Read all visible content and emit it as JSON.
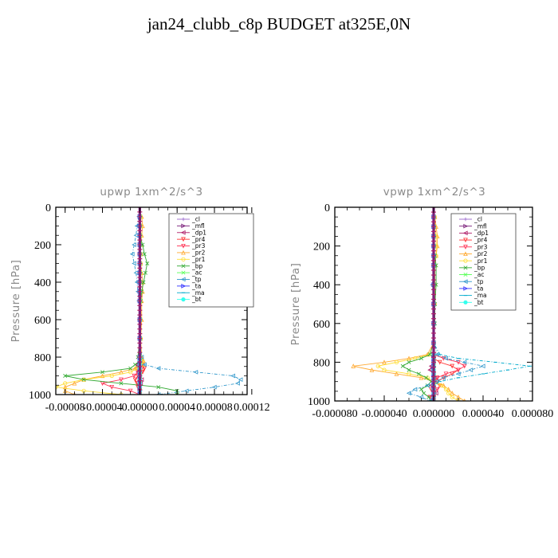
{
  "title": "jan24_clubb_c8p  BUDGET at325E,0N",
  "colors": {
    "_cl": "#9966cc",
    "_mfl": "#7a1f7a",
    "_dp1": "#b0206a",
    "_pr4": "#ff3333",
    "_pr3": "#ff3355",
    "_pr2": "#ffaa33",
    "_pr1": "#ffdd33",
    "_bp": "#33aa33",
    "_ac": "#55ff55",
    "_tp": "#3399cc",
    "_ta": "#3333ff",
    "_ma": "#00aacc",
    "_bt": "#33ffee"
  },
  "legend": [
    "_cl",
    "_mfl",
    "_dp1",
    "_pr4",
    "_pr3",
    "_pr2",
    "_pr1",
    "_bp",
    "_ac",
    "_tp",
    "_ta",
    "_ma",
    "_bt"
  ],
  "chart_data": [
    {
      "type": "line",
      "title": "upwp   1xm^2/s^3",
      "xlabel": "",
      "ylabel": "Pressure [hPa]",
      "xlim": [
        -9e-05,
        0.000115
      ],
      "ylim": [
        1000,
        0
      ],
      "xticks": [
        -8e-05,
        -4e-05,
        0.0,
        4e-05,
        8e-05,
        0.00012
      ],
      "xtick_labels": [
        "-0.00008",
        "-0.00004",
        "0.00000",
        "0.00004",
        "0.00008",
        "0.00012"
      ],
      "yticks": [
        0,
        200,
        400,
        600,
        800,
        1000
      ],
      "ytick_labels": [
        "0",
        "200",
        "400",
        "600",
        "800",
        "1000"
      ],
      "legend_position": "top-right",
      "y": [
        50,
        100,
        150,
        200,
        250,
        300,
        350,
        400,
        450,
        500,
        600,
        700,
        800,
        820,
        840,
        860,
        880,
        900,
        920,
        940,
        960,
        980,
        1000
      ],
      "series": [
        {
          "name": "_cl",
          "values": [
            0,
            0,
            0,
            0,
            0,
            0,
            0,
            0,
            0,
            0,
            0,
            0,
            0,
            0,
            0,
            0,
            0,
            0,
            0,
            0,
            0,
            0,
            0
          ]
        },
        {
          "name": "_mfl",
          "values": [
            0,
            0,
            0,
            0,
            0,
            0,
            0,
            0,
            0,
            0,
            0,
            0,
            0,
            0,
            0,
            0,
            0,
            0,
            0,
            0,
            0,
            0,
            0
          ]
        },
        {
          "name": "_dp1",
          "values": [
            0,
            0,
            0,
            0,
            0,
            0,
            0,
            0,
            0,
            0,
            0,
            0,
            0,
            0,
            -3e-06,
            -4e-06,
            -2e-06,
            0,
            2e-06,
            1e-06,
            0,
            0,
            0
          ]
        },
        {
          "name": "_pr4",
          "values": [
            0,
            0,
            0,
            0,
            0,
            0,
            0,
            0,
            0,
            0,
            0,
            0,
            0,
            1e-06,
            3e-06,
            5e-06,
            3e-06,
            -2e-06,
            -5e-06,
            -3e-06,
            -2e-06,
            0,
            0
          ]
        },
        {
          "name": "_pr3",
          "values": [
            0,
            0,
            0,
            0,
            0,
            0,
            0,
            0,
            0,
            0,
            0,
            0,
            0,
            0,
            2e-06,
            2e-06,
            -2e-06,
            -6e-06,
            -2e-05,
            -4e-05,
            -3e-05,
            -1e-05,
            0
          ]
        },
        {
          "name": "_pr2",
          "values": [
            2e-06,
            3e-06,
            2e-06,
            1e-06,
            1e-06,
            1e-06,
            2e-06,
            3e-06,
            3e-06,
            2e-06,
            2e-06,
            1e-06,
            2e-06,
            4e-06,
            3e-06,
            -5e-06,
            -2e-05,
            -4e-05,
            -6e-05,
            -7e-05,
            -8e-05,
            -8e-05,
            -7e-05
          ]
        },
        {
          "name": "_pr1",
          "values": [
            1e-06,
            1e-06,
            1e-06,
            1e-06,
            1e-06,
            1e-06,
            1e-06,
            1e-06,
            1e-06,
            1e-06,
            1e-06,
            1e-06,
            1e-06,
            3e-06,
            2e-06,
            -3e-06,
            -1e-05,
            -3e-05,
            -6e-05,
            -8e-05,
            -9e-05,
            -6e-05,
            -2e-05
          ]
        },
        {
          "name": "_bp",
          "values": [
            0,
            0,
            0,
            3e-06,
            5e-06,
            8e-06,
            6e-06,
            4e-06,
            2e-06,
            1e-06,
            0,
            0,
            -2e-06,
            0,
            -5e-06,
            -1e-05,
            -4e-05,
            -8e-05,
            -6e-05,
            -2e-05,
            2e-05,
            4e-05,
            4e-05
          ]
        },
        {
          "name": "_ac",
          "values": [
            0,
            0,
            0,
            0,
            0,
            0,
            0,
            0,
            0,
            0,
            0,
            0,
            0,
            0,
            0,
            0,
            0,
            0,
            0,
            0,
            0,
            0,
            0
          ]
        },
        {
          "name": "_tp",
          "values": [
            -1e-06,
            -3e-06,
            -4e-06,
            -6e-06,
            -8e-06,
            -6e-06,
            -4e-06,
            -3e-06,
            -2e-06,
            -1e-06,
            0,
            0,
            2e-06,
            0,
            5e-06,
            2e-05,
            6e-05,
            0.0001,
            0.000108,
            0.000105,
            8e-05,
            5e-05,
            2e-05
          ]
        },
        {
          "name": "_ta",
          "values": [
            0,
            0,
            0,
            0,
            0,
            0,
            0,
            0,
            0,
            0,
            0,
            0,
            0,
            0,
            0,
            0,
            0,
            0,
            0,
            0,
            0,
            0,
            0
          ]
        },
        {
          "name": "_ma",
          "values": [
            0,
            0,
            0,
            0,
            0,
            0,
            0,
            0,
            0,
            0,
            0,
            0,
            0,
            0,
            0,
            0,
            0,
            0,
            0,
            0,
            0,
            0,
            0
          ]
        },
        {
          "name": "_bt",
          "values": [
            0,
            0,
            0,
            0,
            0,
            0,
            0,
            0,
            0,
            0,
            0,
            0,
            0,
            0,
            0,
            0,
            0,
            0,
            0,
            0,
            0,
            0,
            0
          ]
        }
      ]
    },
    {
      "type": "line",
      "title": "vpwp   1xm^2/s^3",
      "xlabel": "",
      "ylabel": "Pressure [hPa]",
      "xlim": [
        -8e-05,
        8e-05
      ],
      "ylim": [
        1000,
        0
      ],
      "xticks": [
        -8e-05,
        -4e-05,
        0.0,
        4e-05,
        8e-05
      ],
      "xtick_labels": [
        "-0.000080",
        "-0.000040",
        "0.000000",
        "0.000040",
        "0.000080"
      ],
      "yticks": [
        0,
        200,
        400,
        600,
        800,
        1000
      ],
      "ytick_labels": [
        "0",
        "200",
        "400",
        "600",
        "800",
        "1000"
      ],
      "legend_position": "top-right",
      "y": [
        50,
        100,
        150,
        200,
        250,
        300,
        400,
        500,
        600,
        700,
        760,
        780,
        800,
        820,
        840,
        860,
        880,
        900,
        920,
        940,
        960,
        980,
        1000
      ],
      "series": [
        {
          "name": "_cl",
          "values": [
            0,
            0,
            0,
            0,
            0,
            0,
            0,
            0,
            0,
            0,
            0,
            0,
            0,
            0,
            0,
            0,
            0,
            0,
            0,
            0,
            0,
            0,
            0
          ]
        },
        {
          "name": "_mfl",
          "values": [
            0,
            0,
            0,
            0,
            0,
            0,
            0,
            0,
            0,
            0,
            0,
            0,
            0,
            0,
            0,
            0,
            0,
            0,
            0,
            0,
            0,
            0,
            0
          ]
        },
        {
          "name": "_dp1",
          "values": [
            0,
            0,
            0,
            0,
            0,
            0,
            0,
            0,
            0,
            0,
            0,
            0,
            0,
            -2e-06,
            -3e-06,
            0,
            2e-06,
            0,
            -2e-06,
            0,
            2e-06,
            0,
            0
          ]
        },
        {
          "name": "_pr4",
          "values": [
            0,
            0,
            0,
            0,
            0,
            0,
            0,
            0,
            0,
            0,
            0,
            0,
            5e-06,
            1.5e-05,
            2e-05,
            1.5e-05,
            8e-06,
            3e-06,
            0,
            -2e-06,
            0,
            0,
            0
          ]
        },
        {
          "name": "_pr3",
          "values": [
            0,
            0,
            0,
            0,
            0,
            0,
            0,
            0,
            0,
            0,
            0,
            8e-06,
            2e-05,
            2.5e-05,
            2e-05,
            1e-05,
            3e-06,
            0,
            5e-06,
            3e-06,
            0,
            -3e-06,
            0
          ]
        },
        {
          "name": "_pr2",
          "values": [
            1e-06,
            2e-06,
            3e-06,
            3e-06,
            2e-06,
            1e-06,
            0,
            0,
            0,
            0,
            -5e-06,
            -2e-05,
            -4e-05,
            -6.5e-05,
            -5e-05,
            -3e-05,
            -1e-05,
            0,
            8e-06,
            1.2e-05,
            1.5e-05,
            2e-05,
            2.5e-05
          ]
        },
        {
          "name": "_pr1",
          "values": [
            1e-06,
            1e-06,
            2e-06,
            2e-06,
            2e-06,
            1e-06,
            1e-06,
            1e-06,
            0,
            0,
            -3e-06,
            -1.5e-05,
            -3e-05,
            -4.5e-05,
            -4e-05,
            -2e-05,
            -5e-06,
            0,
            6e-06,
            1e-05,
            1.2e-05,
            1.5e-05,
            2e-05
          ]
        },
        {
          "name": "_bp",
          "values": [
            0,
            0,
            0,
            0,
            1e-06,
            2e-06,
            2e-06,
            1e-06,
            1e-06,
            0,
            -3e-06,
            -1e-05,
            -2e-05,
            -2.5e-05,
            -2e-05,
            -1.2e-05,
            -6e-06,
            -2e-06,
            -5e-06,
            -1e-05,
            -8e-06,
            -4e-06,
            -2e-06
          ]
        },
        {
          "name": "_ac",
          "values": [
            0,
            0,
            0,
            0,
            0,
            0,
            0,
            0,
            0,
            0,
            0,
            0,
            0,
            0,
            0,
            0,
            0,
            0,
            0,
            0,
            0,
            0,
            0
          ]
        },
        {
          "name": "_tp",
          "values": [
            0,
            0,
            0,
            0,
            0,
            0,
            -1e-06,
            0,
            0,
            0,
            3e-06,
            1e-05,
            2.5e-05,
            4e-05,
            3e-05,
            2e-05,
            8e-06,
            2e-06,
            -5e-06,
            -1.5e-05,
            -2e-05,
            -1e-05,
            -3e-06
          ]
        },
        {
          "name": "_ta",
          "values": [
            0,
            0,
            0,
            0,
            0,
            0,
            0,
            0,
            0,
            0,
            0,
            0,
            0,
            0,
            0,
            0,
            0,
            0,
            0,
            0,
            0,
            0,
            0
          ]
        },
        {
          "name": "_ma",
          "values": [
            0,
            0,
            0,
            0,
            0,
            0,
            0,
            0,
            0,
            0,
            5e-06,
            2e-05,
            5e-05,
            7.8e-05,
            6e-05,
            4e-05,
            2e-05,
            5e-06,
            0,
            0,
            0,
            0,
            0
          ]
        },
        {
          "name": "_bt",
          "values": [
            0,
            0,
            0,
            0,
            0,
            0,
            0,
            0,
            0,
            0,
            0,
            0,
            0,
            0,
            0,
            0,
            0,
            0,
            0,
            0,
            0,
            0,
            0
          ]
        }
      ]
    }
  ]
}
